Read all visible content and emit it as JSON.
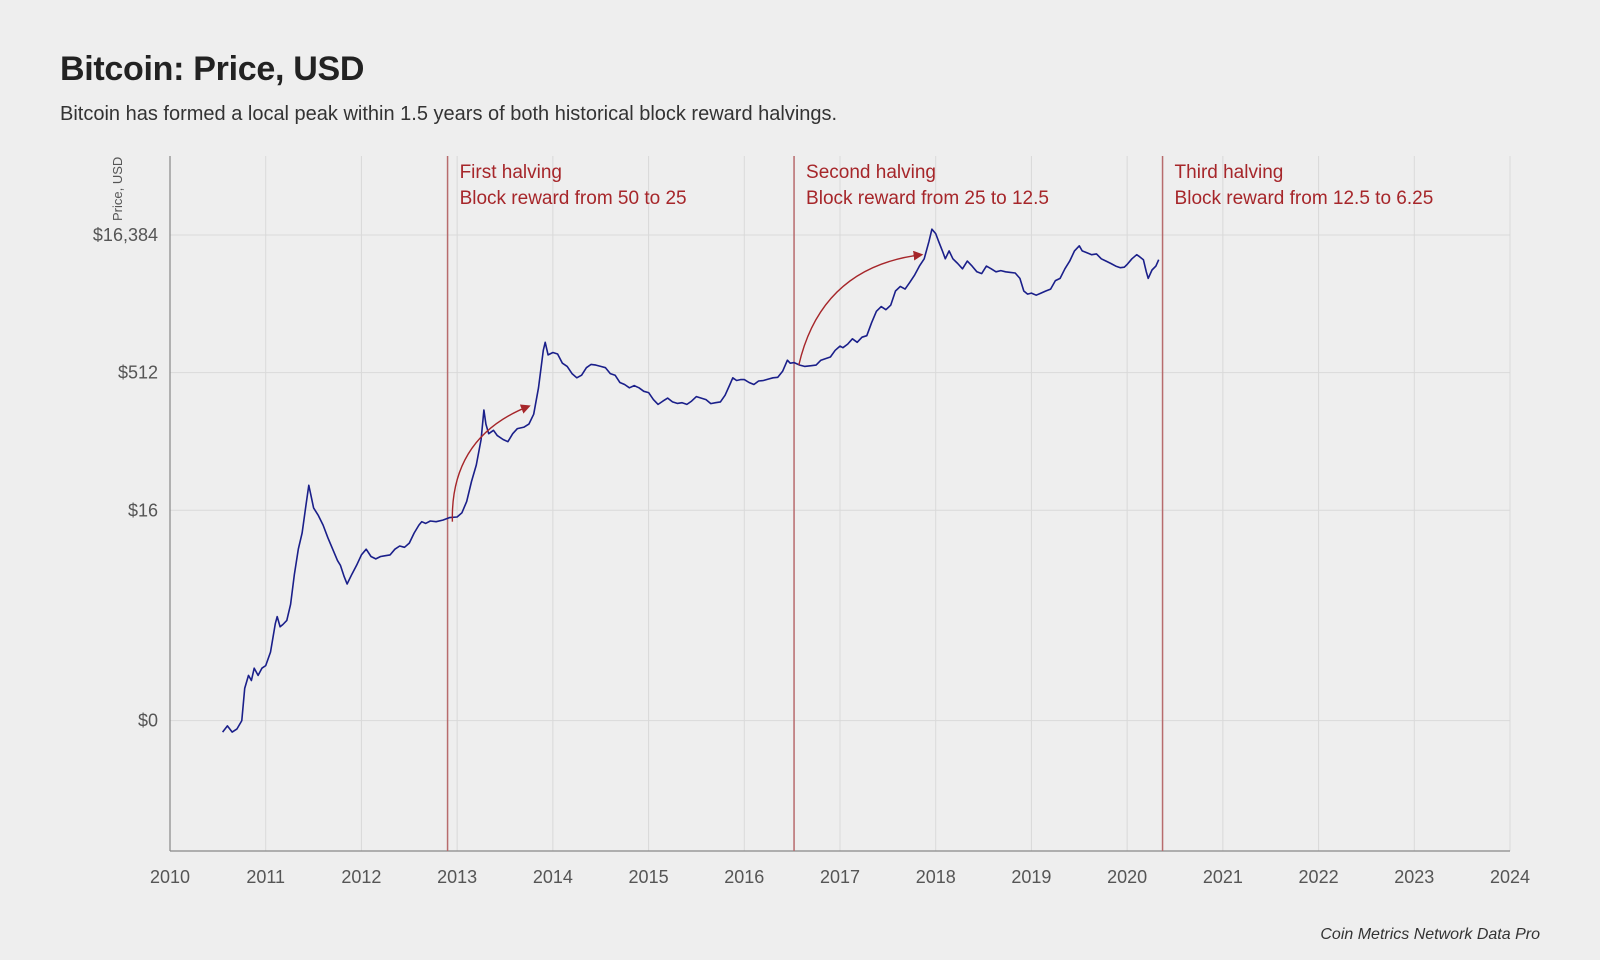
{
  "title": "Bitcoin: Price, USD",
  "subtitle": "Bitcoin has formed a local peak within 1.5 years of both historical block reward halvings.",
  "attribution": "Coin Metrics Network Data Pro",
  "chart": {
    "type": "line",
    "scale_y": "log",
    "line_color": "#1a1f8a",
    "line_width": 1.6,
    "background_color": "#eeeeee",
    "grid_color": "#d9d9d9",
    "axis_color": "#888888",
    "annot_color": "#a6262a",
    "annot_line_color": "#b76b6d",
    "ylabel": "Price, USD",
    "ylabel_fontsize": 13,
    "tick_fontsize": 18,
    "annot_fontsize": 19,
    "title_fontsize": 34,
    "subtitle_fontsize": 20,
    "x_domain": [
      2010,
      2024
    ],
    "x_ticks": [
      2010,
      2011,
      2012,
      2013,
      2014,
      2015,
      2016,
      2017,
      2018,
      2019,
      2020,
      2021,
      2022,
      2023,
      2024
    ],
    "y_ticks": [
      {
        "value": 0.08,
        "label": "$0"
      },
      {
        "value": 16,
        "label": "$16"
      },
      {
        "value": 512,
        "label": "$512"
      },
      {
        "value": 16384,
        "label": "$16,384"
      }
    ],
    "y_log_domain": [
      0.003,
      120000
    ],
    "halvings": [
      {
        "year": 2012.9,
        "line1": "First halving",
        "line2": "Block reward from 50 to 25"
      },
      {
        "year": 2016.52,
        "line1": "Second halving",
        "line2": "Block reward from 25 to 12.5"
      },
      {
        "year": 2020.37,
        "line1": "Third halving",
        "line2": "Block reward from 12.5 to 6.25"
      }
    ],
    "arrows": [
      {
        "start_year": 2012.95,
        "start_price": 12,
        "end_year": 2013.75,
        "end_price": 220,
        "bend": 0.35
      },
      {
        "start_year": 2016.57,
        "start_price": 620,
        "end_year": 2017.85,
        "end_price": 10000,
        "bend": 0.35
      }
    ],
    "series": [
      [
        2010.55,
        0.06
      ],
      [
        2010.6,
        0.07
      ],
      [
        2010.65,
        0.06
      ],
      [
        2010.7,
        0.065
      ],
      [
        2010.75,
        0.08
      ],
      [
        2010.78,
        0.18
      ],
      [
        2010.82,
        0.25
      ],
      [
        2010.85,
        0.22
      ],
      [
        2010.88,
        0.3
      ],
      [
        2010.92,
        0.25
      ],
      [
        2010.96,
        0.3
      ],
      [
        2011.0,
        0.32
      ],
      [
        2011.05,
        0.45
      ],
      [
        2011.1,
        0.92
      ],
      [
        2011.12,
        1.1
      ],
      [
        2011.15,
        0.85
      ],
      [
        2011.18,
        0.9
      ],
      [
        2011.22,
        1.0
      ],
      [
        2011.26,
        1.5
      ],
      [
        2011.3,
        3.2
      ],
      [
        2011.34,
        6.0
      ],
      [
        2011.38,
        9.0
      ],
      [
        2011.42,
        18.0
      ],
      [
        2011.45,
        30.0
      ],
      [
        2011.47,
        24.0
      ],
      [
        2011.5,
        17.0
      ],
      [
        2011.55,
        14.0
      ],
      [
        2011.6,
        11.0
      ],
      [
        2011.65,
        8.0
      ],
      [
        2011.7,
        6.0
      ],
      [
        2011.75,
        4.5
      ],
      [
        2011.78,
        4.0
      ],
      [
        2011.82,
        3.0
      ],
      [
        2011.85,
        2.5
      ],
      [
        2011.9,
        3.2
      ],
      [
        2011.95,
        4.0
      ],
      [
        2012.0,
        5.2
      ],
      [
        2012.05,
        6.0
      ],
      [
        2012.1,
        5.0
      ],
      [
        2012.15,
        4.7
      ],
      [
        2012.2,
        5.0
      ],
      [
        2012.25,
        5.1
      ],
      [
        2012.3,
        5.2
      ],
      [
        2012.35,
        6.0
      ],
      [
        2012.4,
        6.5
      ],
      [
        2012.45,
        6.3
      ],
      [
        2012.5,
        7.0
      ],
      [
        2012.55,
        9.0
      ],
      [
        2012.6,
        11.0
      ],
      [
        2012.63,
        12.0
      ],
      [
        2012.67,
        11.5
      ],
      [
        2012.72,
        12.2
      ],
      [
        2012.78,
        12.0
      ],
      [
        2012.85,
        12.5
      ],
      [
        2012.92,
        13.3
      ],
      [
        2013.0,
        13.5
      ],
      [
        2013.05,
        15.0
      ],
      [
        2013.1,
        20.0
      ],
      [
        2013.15,
        33.0
      ],
      [
        2013.2,
        50.0
      ],
      [
        2013.25,
        95.0
      ],
      [
        2013.28,
        200.0
      ],
      [
        2013.3,
        140.0
      ],
      [
        2013.33,
        110.0
      ],
      [
        2013.38,
        120.0
      ],
      [
        2013.42,
        105.0
      ],
      [
        2013.48,
        95.0
      ],
      [
        2013.53,
        90.0
      ],
      [
        2013.58,
        110.0
      ],
      [
        2013.63,
        125.0
      ],
      [
        2013.7,
        130.0
      ],
      [
        2013.75,
        140.0
      ],
      [
        2013.8,
        180.0
      ],
      [
        2013.85,
        350.0
      ],
      [
        2013.9,
        900.0
      ],
      [
        2013.92,
        1100.0
      ],
      [
        2013.95,
        800.0
      ],
      [
        2014.0,
        850.0
      ],
      [
        2014.05,
        820.0
      ],
      [
        2014.1,
        650.0
      ],
      [
        2014.15,
        600.0
      ],
      [
        2014.2,
        500.0
      ],
      [
        2014.25,
        450.0
      ],
      [
        2014.3,
        480.0
      ],
      [
        2014.35,
        580.0
      ],
      [
        2014.4,
        630.0
      ],
      [
        2014.45,
        620.0
      ],
      [
        2014.5,
        600.0
      ],
      [
        2014.55,
        580.0
      ],
      [
        2014.6,
        500.0
      ],
      [
        2014.65,
        480.0
      ],
      [
        2014.7,
        400.0
      ],
      [
        2014.75,
        380.0
      ],
      [
        2014.8,
        350.0
      ],
      [
        2014.85,
        370.0
      ],
      [
        2014.9,
        350.0
      ],
      [
        2014.95,
        320.0
      ],
      [
        2015.0,
        310.0
      ],
      [
        2015.05,
        260.0
      ],
      [
        2015.1,
        230.0
      ],
      [
        2015.15,
        250.0
      ],
      [
        2015.2,
        270.0
      ],
      [
        2015.25,
        245.0
      ],
      [
        2015.3,
        236.0
      ],
      [
        2015.35,
        240.0
      ],
      [
        2015.4,
        230.0
      ],
      [
        2015.45,
        250.0
      ],
      [
        2015.5,
        280.0
      ],
      [
        2015.55,
        270.0
      ],
      [
        2015.6,
        260.0
      ],
      [
        2015.65,
        235.0
      ],
      [
        2015.7,
        240.0
      ],
      [
        2015.75,
        245.0
      ],
      [
        2015.8,
        290.0
      ],
      [
        2015.85,
        380.0
      ],
      [
        2015.88,
        450.0
      ],
      [
        2015.92,
        420.0
      ],
      [
        2015.96,
        430.0
      ],
      [
        2016.0,
        430.0
      ],
      [
        2016.05,
        400.0
      ],
      [
        2016.1,
        380.0
      ],
      [
        2016.15,
        415.0
      ],
      [
        2016.2,
        420.0
      ],
      [
        2016.25,
        435.0
      ],
      [
        2016.3,
        450.0
      ],
      [
        2016.35,
        455.0
      ],
      [
        2016.4,
        530.0
      ],
      [
        2016.45,
        700.0
      ],
      [
        2016.48,
        650.0
      ],
      [
        2016.52,
        660.0
      ],
      [
        2016.58,
        620.0
      ],
      [
        2016.63,
        600.0
      ],
      [
        2016.7,
        610.0
      ],
      [
        2016.75,
        620.0
      ],
      [
        2016.8,
        700.0
      ],
      [
        2016.85,
        730.0
      ],
      [
        2016.9,
        760.0
      ],
      [
        2016.95,
        900.0
      ],
      [
        2017.0,
        1000.0
      ],
      [
        2017.03,
        960.0
      ],
      [
        2017.08,
        1050.0
      ],
      [
        2017.13,
        1200.0
      ],
      [
        2017.18,
        1100.0
      ],
      [
        2017.23,
        1250.0
      ],
      [
        2017.28,
        1300.0
      ],
      [
        2017.33,
        1800.0
      ],
      [
        2017.38,
        2400.0
      ],
      [
        2017.43,
        2700.0
      ],
      [
        2017.48,
        2500.0
      ],
      [
        2017.53,
        2800.0
      ],
      [
        2017.58,
        4000.0
      ],
      [
        2017.63,
        4500.0
      ],
      [
        2017.68,
        4200.0
      ],
      [
        2017.73,
        5000.0
      ],
      [
        2017.78,
        6000.0
      ],
      [
        2017.83,
        7500.0
      ],
      [
        2017.88,
        9000.0
      ],
      [
        2017.93,
        14000.0
      ],
      [
        2017.96,
        19000.0
      ],
      [
        2018.0,
        17000.0
      ],
      [
        2018.03,
        14000.0
      ],
      [
        2018.07,
        11000.0
      ],
      [
        2018.1,
        9000.0
      ],
      [
        2018.14,
        11000.0
      ],
      [
        2018.18,
        9000.0
      ],
      [
        2018.23,
        8000.0
      ],
      [
        2018.28,
        7000.0
      ],
      [
        2018.33,
        8500.0
      ],
      [
        2018.38,
        7500.0
      ],
      [
        2018.43,
        6500.0
      ],
      [
        2018.48,
        6200.0
      ],
      [
        2018.53,
        7500.0
      ],
      [
        2018.58,
        7000.0
      ],
      [
        2018.63,
        6500.0
      ],
      [
        2018.68,
        6700.0
      ],
      [
        2018.73,
        6500.0
      ],
      [
        2018.78,
        6400.0
      ],
      [
        2018.83,
        6300.0
      ],
      [
        2018.88,
        5500.0
      ],
      [
        2018.92,
        4000.0
      ],
      [
        2018.96,
        3700.0
      ],
      [
        2019.0,
        3800.0
      ],
      [
        2019.05,
        3600.0
      ],
      [
        2019.1,
        3800.0
      ],
      [
        2019.15,
        4000.0
      ],
      [
        2019.2,
        4200.0
      ],
      [
        2019.25,
        5200.0
      ],
      [
        2019.3,
        5500.0
      ],
      [
        2019.35,
        7000.0
      ],
      [
        2019.4,
        8500.0
      ],
      [
        2019.45,
        11000.0
      ],
      [
        2019.5,
        12500.0
      ],
      [
        2019.53,
        11000.0
      ],
      [
        2019.58,
        10500.0
      ],
      [
        2019.63,
        10000.0
      ],
      [
        2019.68,
        10200.0
      ],
      [
        2019.73,
        9000.0
      ],
      [
        2019.78,
        8500.0
      ],
      [
        2019.83,
        8000.0
      ],
      [
        2019.88,
        7500.0
      ],
      [
        2019.93,
        7200.0
      ],
      [
        2019.97,
        7300.0
      ],
      [
        2020.0,
        7800.0
      ],
      [
        2020.05,
        9000.0
      ],
      [
        2020.1,
        10000.0
      ],
      [
        2020.13,
        9500.0
      ],
      [
        2020.17,
        8800.0
      ],
      [
        2020.2,
        6500.0
      ],
      [
        2020.22,
        5500.0
      ],
      [
        2020.26,
        6800.0
      ],
      [
        2020.3,
        7500.0
      ],
      [
        2020.33,
        8800.0
      ]
    ]
  }
}
